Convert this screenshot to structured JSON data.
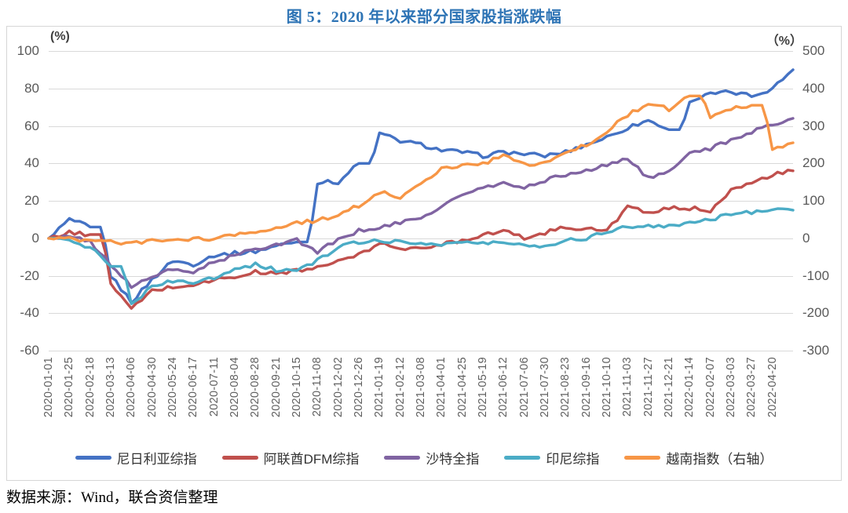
{
  "title": "图 5：2020 年以来部分国家股指涨跌幅",
  "source_note": "数据来源：Wind，联合资信整理",
  "colors": {
    "title_text": "#2E74B5",
    "axis_text": "#595959",
    "gridline": "#D9D9D9",
    "border": "#D6D6D6",
    "legend_text": "#333333"
  },
  "chart_data": {
    "type": "line",
    "title": "图 5：2020 年以来部分国家股指涨跌幅",
    "grid": "horizontal",
    "legend_position": "bottom",
    "left_axis": {
      "unit": "(%)",
      "range": [
        -60,
        100
      ],
      "ticks": [
        100,
        80,
        60,
        40,
        20,
        0,
        -20,
        -40,
        -60
      ]
    },
    "right_axis": {
      "unit": "（%）",
      "range": [
        -300,
        500
      ],
      "ticks": [
        500,
        400,
        300,
        200,
        100,
        0,
        -100,
        -200,
        -300
      ]
    },
    "x_tick_labels": [
      "2020-01-01",
      "2020-01-25",
      "2020-02-18",
      "2020-03-13",
      "2020-04-06",
      "2020-04-30",
      "2020-05-24",
      "2020-06-17",
      "2020-07-11",
      "2020-08-04",
      "2020-08-28",
      "2020-09-21",
      "2020-10-15",
      "2020-11-08",
      "2020-12-02",
      "2020-12-26",
      "2021-01-19",
      "2021-02-12",
      "2021-03-08",
      "2021-04-01",
      "2021-04-25",
      "2021-05-19",
      "2021-06-12",
      "2021-07-06",
      "2021-07-30",
      "2021-08-23",
      "2021-09-16",
      "2021-10-10",
      "2021-11-03",
      "2021-11-27",
      "2021-12-21",
      "2022-01-14",
      "2022-02-07",
      "2022-03-03",
      "2022-03-27",
      "2022-04-20"
    ],
    "sampling_note": "values estimated at each x tick date plus one end-of-line point",
    "series": [
      {
        "name": "尼日利亚综指",
        "axis": "left",
        "color": "#4472C4",
        "values": [
          0,
          10,
          6,
          -20,
          -34,
          -22,
          -12,
          -14,
          -9,
          -8,
          -7,
          -4,
          -2,
          30,
          30,
          40,
          56,
          52,
          50,
          47,
          46,
          44,
          46,
          45,
          44,
          46,
          50,
          54,
          59,
          63,
          58,
          73,
          77,
          78,
          76,
          80,
          90
        ]
      },
      {
        "name": "阿联酋DFM综指",
        "axis": "left",
        "color": "#C0504D",
        "values": [
          0,
          3,
          2,
          -24,
          -38,
          -28,
          -26,
          -25,
          -22,
          -21,
          -18,
          -19,
          -17,
          -16,
          -12,
          -9,
          -3,
          -5,
          -6,
          -3,
          -1,
          2,
          4,
          0,
          3,
          6,
          5,
          4,
          17,
          13,
          16,
          16,
          15,
          26,
          29,
          34,
          36
        ]
      },
      {
        "name": "沙特全指",
        "axis": "left",
        "color": "#8064A2",
        "values": [
          0,
          1,
          -2,
          -14,
          -26,
          -20,
          -17,
          -18,
          -13,
          -9,
          -6,
          -3,
          -1,
          -7,
          -1,
          4,
          6,
          8,
          11,
          17,
          23,
          27,
          29,
          27,
          31,
          34,
          36,
          39,
          43,
          32,
          35,
          46,
          48,
          52,
          57,
          61,
          64
        ]
      },
      {
        "name": "印尼综指",
        "axis": "left",
        "color": "#4BACC6",
        "values": [
          0,
          -1,
          -5,
          -15,
          -35,
          -26,
          -23,
          -24,
          -21,
          -16,
          -14,
          -17,
          -17,
          -12,
          -5,
          -2,
          -1,
          -2,
          -3,
          -3,
          -2,
          -3,
          -2,
          -4,
          -4,
          -1,
          0,
          4,
          6,
          7,
          6,
          9,
          10,
          13,
          14,
          16,
          15
        ]
      },
      {
        "name": "越南指数（右轴）",
        "axis": "right",
        "color": "#F79646",
        "values": [
          0,
          -2,
          -8,
          -8,
          -15,
          -8,
          -5,
          -3,
          -2,
          8,
          12,
          30,
          42,
          47,
          62,
          88,
          125,
          108,
          150,
          185,
          195,
          200,
          220,
          195,
          200,
          225,
          250,
          285,
          330,
          360,
          345,
          380,
          325,
          345,
          355,
          235,
          255
        ]
      }
    ]
  }
}
